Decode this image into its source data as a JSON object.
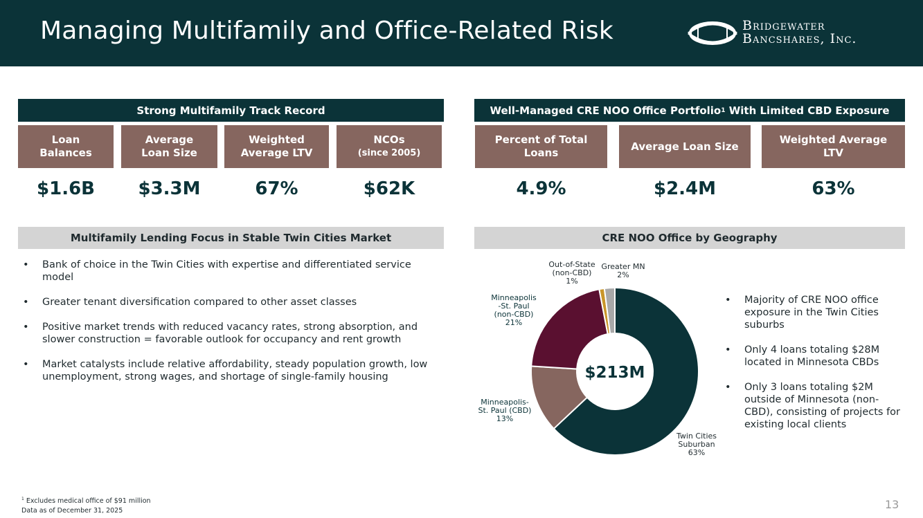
{
  "header": {
    "title": "Managing Multifamily and Office-Related Risk",
    "logo_line1": "Bridgewater",
    "logo_line2": "Bancshares, Inc."
  },
  "multifamily": {
    "bar_title": "Strong Multifamily Track Record",
    "metrics": [
      {
        "label": "Loan\nBalances",
        "value": "$1.6B"
      },
      {
        "label": "Average\nLoan Size",
        "value": "$3.3M"
      },
      {
        "label": "Weighted\nAverage LTV",
        "value": "67%"
      },
      {
        "label": "NCOs",
        "sub": "(since 2005)",
        "value": "$62K"
      }
    ]
  },
  "office": {
    "bar_title": "Well-Managed CRE NOO Office Portfolio",
    "bar_sup": "1",
    "bar_title_rest": " With Limited CBD Exposure",
    "metrics": [
      {
        "label": "Percent of Total\nLoans",
        "value": "4.9%"
      },
      {
        "label": "Average Loan Size",
        "value": "$2.4M"
      },
      {
        "label": "Weighted Average\nLTV",
        "value": "63%"
      }
    ]
  },
  "focus": {
    "bar_title": "Multifamily Lending Focus in Stable Twin Cities Market",
    "bullets": [
      "Bank of choice in the Twin Cities with expertise and differentiated service model",
      "Greater tenant diversification compared to other asset classes",
      "Positive market trends with reduced vacancy rates, strong absorption, and slower construction = favorable outlook for occupancy and rent growth",
      "Market catalysts include relative affordability, steady population growth, low unemployment, strong wages, and shortage of single-family housing"
    ]
  },
  "geo": {
    "bar_title": "CRE NOO Office by Geography",
    "bullets": [
      "Majority of CRE NOO office exposure in the Twin Cities suburbs",
      "Only 4 loans totaling $28M located in Minnesota CBDs",
      "Only 3 loans totaling $2M outside of Minnesota (non-CBD), consisting of projects for existing local clients"
    ]
  },
  "chart_data": {
    "type": "pie",
    "title": "CRE NOO Office by Geography",
    "center_label": "$213M",
    "categories": [
      "Twin Cities Suburban",
      "Minneapolis-St. Paul (CBD)",
      "Minneapolis-St. Paul (non-CBD)",
      "Out-of-State (non-CBD)",
      "Greater MN"
    ],
    "values": [
      63,
      13,
      21,
      1,
      2
    ],
    "label_lines": [
      [
        "Twin Cities",
        "Suburban",
        "63%"
      ],
      [
        "Minneapolis-",
        "St. Paul (CBD)",
        "13%"
      ],
      [
        "Minneapolis",
        "-St. Paul",
        "(non-CBD)",
        "21%"
      ],
      [
        "Out-of-State",
        "(non-CBD)",
        "1%"
      ],
      [
        "Greater MN",
        "2%"
      ]
    ],
    "colors": [
      "#0b3338",
      "#86665f",
      "#5a1030",
      "#c9962a",
      "#a9a9a9"
    ]
  },
  "footer": {
    "note_sup": "1",
    "note": " Excludes medical office of $91 million",
    "data_as_of": "Data as of December 31, 2025",
    "page_number": "13"
  }
}
